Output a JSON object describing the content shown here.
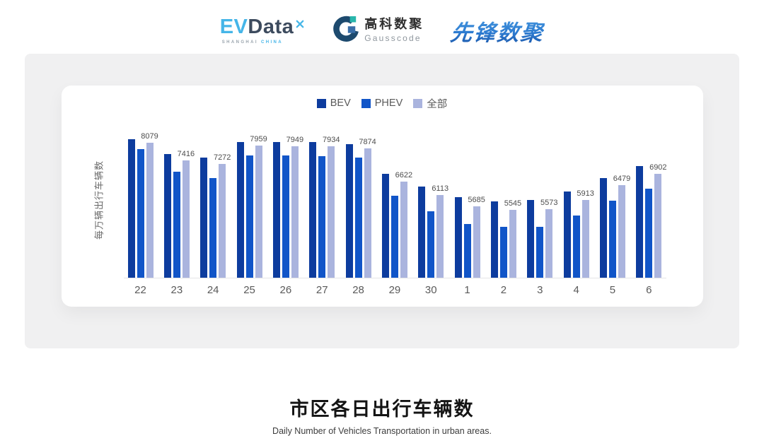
{
  "header": {
    "evdata": {
      "ev": "EV",
      "data": "Data",
      "sub1": "SHANGHAI",
      "sub2": "CHINA"
    },
    "gausscode": {
      "cn": "高科数聚",
      "en": "Gausscode"
    },
    "xianfeng": {
      "text": "先锋数聚"
    }
  },
  "chart_data": {
    "type": "bar",
    "title": "市区各日出行车辆数",
    "subtitle": "Daily Number of Vehicles Transportation in urban areas.",
    "ylabel": "每万辆出行车辆数",
    "categories": [
      "22",
      "23",
      "24",
      "25",
      "26",
      "27",
      "28",
      "29",
      "30",
      "1",
      "2",
      "3",
      "4",
      "5",
      "6"
    ],
    "series": [
      {
        "name": "BEV",
        "color": "#0d3c9e",
        "values": [
          8220,
          7640,
          7530,
          8110,
          8110,
          8110,
          8030,
          6920,
          6440,
          6040,
          5880,
          5920,
          6240,
          6760,
          7190
        ]
      },
      {
        "name": "PHEV",
        "color": "#1155c8",
        "values": [
          7840,
          6980,
          6760,
          7610,
          7590,
          7570,
          7530,
          6080,
          5500,
          5030,
          4910,
          4910,
          5340,
          5900,
          6350
        ]
      },
      {
        "name": "全部",
        "color": "#aab4de",
        "values": [
          8079,
          7416,
          7272,
          7959,
          7949,
          7934,
          7874,
          6622,
          6113,
          5685,
          5545,
          5573,
          5913,
          6479,
          6902
        ]
      }
    ],
    "data_labels": {
      "series": "全部",
      "values": [
        8079,
        7416,
        7272,
        7959,
        7949,
        7934,
        7874,
        6622,
        6113,
        5685,
        5545,
        5573,
        5913,
        6479,
        6902
      ]
    },
    "ylim": [
      3000,
      8900
    ],
    "legend_position": "top",
    "grid": false
  }
}
